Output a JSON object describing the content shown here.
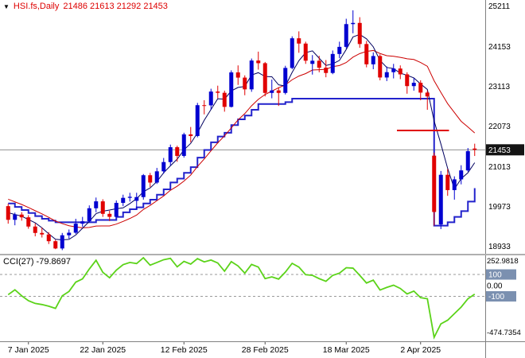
{
  "header": {
    "marker": "▼",
    "symbol_title": "HSI.fs,Daily",
    "ohlc_text": "21486 21613 21292 21453",
    "color": "#dd0000"
  },
  "cci_label": "CCI(27) -79.8697",
  "colors": {
    "bull": "#0000d0",
    "bear": "#e00000",
    "ma_fast": "#000060",
    "ma_slow": "#cc0000",
    "step_line": "#2222cc",
    "cci_line": "#5bd319",
    "price_line": "#909090",
    "price_tag_bg": "#141414",
    "level_tag_bg": "#7b90b0",
    "separator": "#808080",
    "level_dash": "#9a9a9a"
  },
  "chart_data": {
    "type": "candlestick",
    "symbol": "HSI.fs",
    "timeframe": "Daily",
    "last_quote": {
      "open": 21486,
      "high": 21613,
      "low": 21292,
      "close": 21453
    },
    "price_axis_ticks": [
      25211,
      24153,
      23113,
      22073,
      21013,
      19973,
      18933
    ],
    "time_axis_labels": [
      {
        "text": "7 Jan 2025",
        "index": 3
      },
      {
        "text": "22 Jan 2025",
        "index": 14
      },
      {
        "text": "12 Feb 2025",
        "index": 26
      },
      {
        "text": "28 Feb 2025",
        "index": 38
      },
      {
        "text": "18 Mar 2025",
        "index": 50
      },
      {
        "text": "2 Apr 2025",
        "index": 61
      }
    ],
    "candle_fields": [
      "date",
      "open",
      "high",
      "low",
      "close"
    ],
    "candles": [
      [
        "2025-01-02",
        19980,
        20041,
        19522,
        19623
      ],
      [
        "2025-01-03",
        19623,
        19811,
        19480,
        19760
      ],
      [
        "2025-01-06",
        19760,
        19823,
        19600,
        19688
      ],
      [
        "2025-01-07",
        19688,
        19745,
        19390,
        19447
      ],
      [
        "2025-01-08",
        19447,
        19530,
        19191,
        19280
      ],
      [
        "2025-01-09",
        19280,
        19420,
        19160,
        19240
      ],
      [
        "2025-01-10",
        19240,
        19300,
        18990,
        19064
      ],
      [
        "2025-01-13",
        19064,
        19100,
        18856,
        18874
      ],
      [
        "2025-01-14",
        18874,
        19280,
        18830,
        19219
      ],
      [
        "2025-01-15",
        19219,
        19370,
        19130,
        19286
      ],
      [
        "2025-01-16",
        19286,
        19650,
        19250,
        19522
      ],
      [
        "2025-01-17",
        19522,
        19700,
        19440,
        19584
      ],
      [
        "2025-01-20",
        19584,
        20000,
        19550,
        19925
      ],
      [
        "2025-01-21",
        19925,
        20205,
        19820,
        20106
      ],
      [
        "2025-01-22",
        20106,
        20160,
        19700,
        19779
      ],
      [
        "2025-01-23",
        19779,
        19860,
        19590,
        19701
      ],
      [
        "2025-01-24",
        19701,
        20130,
        19690,
        20066
      ],
      [
        "2025-01-27",
        20066,
        20280,
        19980,
        20197
      ],
      [
        "2025-01-28",
        20197,
        20330,
        20100,
        20225
      ],
      [
        "2025-02-03",
        20120,
        20330,
        19900,
        20217
      ],
      [
        "2025-02-04",
        20217,
        20820,
        20150,
        20789
      ],
      [
        "2025-02-05",
        20789,
        20850,
        20480,
        20597
      ],
      [
        "2025-02-06",
        20597,
        20980,
        20560,
        20891
      ],
      [
        "2025-02-07",
        20891,
        21240,
        20830,
        21133
      ],
      [
        "2025-02-10",
        21133,
        21590,
        21050,
        21521
      ],
      [
        "2025-02-11",
        21521,
        21560,
        21140,
        21294
      ],
      [
        "2025-02-12",
        21294,
        21900,
        21250,
        21857
      ],
      [
        "2025-02-13",
        21857,
        22050,
        21650,
        21814
      ],
      [
        "2025-02-14",
        21814,
        22680,
        21780,
        22620
      ],
      [
        "2025-02-17",
        22620,
        22750,
        22380,
        22616
      ],
      [
        "2025-02-18",
        22616,
        23050,
        22500,
        22976
      ],
      [
        "2025-02-19",
        22976,
        23130,
        22800,
        22944
      ],
      [
        "2025-02-20",
        22944,
        23000,
        22450,
        22576
      ],
      [
        "2025-02-21",
        22576,
        23530,
        22560,
        23477
      ],
      [
        "2025-02-24",
        23477,
        23660,
        23150,
        23341
      ],
      [
        "2025-02-25",
        23341,
        23400,
        22880,
        23034
      ],
      [
        "2025-02-26",
        23034,
        23840,
        22970,
        23787
      ],
      [
        "2025-02-27",
        23787,
        24020,
        23550,
        23718
      ],
      [
        "2025-02-28",
        23718,
        23750,
        22850,
        22941
      ],
      [
        "2025-03-03",
        22941,
        23290,
        22800,
        23006
      ],
      [
        "2025-03-04",
        23006,
        23090,
        22600,
        22941
      ],
      [
        "2025-03-05",
        22941,
        23650,
        22900,
        23594
      ],
      [
        "2025-03-06",
        23594,
        24420,
        23560,
        24369
      ],
      [
        "2025-03-07",
        24369,
        24550,
        23990,
        24231
      ],
      [
        "2025-03-10",
        24231,
        24280,
        23700,
        23783
      ],
      [
        "2025-03-11",
        23700,
        23930,
        23420,
        23782
      ],
      [
        "2025-03-12",
        23782,
        23910,
        23480,
        23600
      ],
      [
        "2025-03-13",
        23600,
        23800,
        23350,
        23462
      ],
      [
        "2025-03-14",
        23462,
        24050,
        23430,
        23959
      ],
      [
        "2025-03-17",
        23959,
        24280,
        23850,
        24145
      ],
      [
        "2025-03-18",
        24145,
        24880,
        24100,
        24740
      ],
      [
        "2025-03-19",
        24740,
        25100,
        24500,
        24771
      ],
      [
        "2025-03-20",
        24771,
        24920,
        24120,
        24219
      ],
      [
        "2025-03-21",
        24219,
        24300,
        23610,
        23689
      ],
      [
        "2025-03-24",
        23689,
        24000,
        23560,
        23905
      ],
      [
        "2025-03-25",
        23905,
        23950,
        23270,
        23344
      ],
      [
        "2025-03-26",
        23344,
        23630,
        23250,
        23483
      ],
      [
        "2025-03-27",
        23483,
        23700,
        23320,
        23578
      ],
      [
        "2025-03-28",
        23578,
        23660,
        23300,
        23426
      ],
      [
        "2025-03-31",
        23426,
        23480,
        22920,
        23119
      ],
      [
        "2025-04-01",
        23119,
        23330,
        23000,
        23206
      ],
      [
        "2025-04-02",
        23206,
        23270,
        22750,
        22949
      ],
      [
        "2025-04-03",
        22949,
        23000,
        22500,
        22849
      ],
      [
        "2025-04-07",
        21300,
        21380,
        19470,
        19828
      ],
      [
        "2025-04-08",
        19500,
        20900,
        19380,
        20800
      ],
      [
        "2025-04-09",
        20800,
        20950,
        20250,
        20400
      ],
      [
        "2025-04-10",
        20400,
        20760,
        20150,
        20681
      ],
      [
        "2025-04-11",
        20681,
        21050,
        20550,
        20915
      ],
      [
        "2025-04-14",
        20915,
        21500,
        20880,
        21417
      ],
      [
        "2025-04-15",
        21486,
        21613,
        21292,
        21453
      ]
    ],
    "overlays": {
      "ma_fast": {
        "period": 4
      },
      "ma_slow": {
        "period": 13
      },
      "ma_seed_closes": [
        20720,
        20650,
        20560,
        20470,
        20390,
        20310,
        20230,
        20150,
        20080,
        20010,
        19940,
        19870,
        19800
      ],
      "step_line_values": [
        20050,
        19960,
        19880,
        19800,
        19720,
        19650,
        19600,
        19560,
        19560,
        19560,
        19560,
        19560,
        19560,
        19620,
        19620,
        19620,
        19700,
        19820,
        19900,
        19950,
        20050,
        20150,
        20280,
        20420,
        20600,
        20700,
        20850,
        21000,
        21250,
        21450,
        21650,
        21800,
        21900,
        22100,
        22250,
        22350,
        22500,
        22650,
        22650,
        22650,
        22650,
        22700,
        22790,
        22790,
        22790,
        22790,
        22790,
        22790,
        22790,
        22790,
        22790,
        22790,
        22790,
        22790,
        22790,
        22790,
        22790,
        22790,
        22790,
        22790,
        22790,
        22790,
        22790,
        19470,
        19470,
        19560,
        19700,
        19850,
        20100,
        20450
      ]
    },
    "annotations": {
      "horizontal_segment": {
        "price": 21960,
        "from_index": 57.5,
        "to_index": 65.2,
        "color": "#e00000"
      },
      "current_price_line": {
        "price": 21453,
        "color": "#909090"
      }
    },
    "indicator": {
      "name": "CCI",
      "period": 27,
      "current_value": -79.8697,
      "scale_max": 252.9818,
      "scale_min": -474.7354,
      "zero_label": "0.00",
      "levels": [
        100,
        -100
      ],
      "values": [
        -85,
        -40,
        -95,
        -140,
        -165,
        -175,
        -190,
        -210,
        -95,
        -55,
        30,
        60,
        150,
        230,
        120,
        70,
        140,
        190,
        210,
        200,
        252.9818,
        185,
        210,
        235,
        248,
        170,
        220,
        195,
        245,
        215,
        232,
        205,
        130,
        218,
        178,
        112,
        192,
        168,
        62,
        78,
        58,
        122,
        202,
        168,
        98,
        92,
        62,
        38,
        92,
        112,
        162,
        158,
        92,
        22,
        48,
        -42,
        -18,
        2,
        -28,
        -78,
        -52,
        -112,
        -122,
        -474.7354,
        -352,
        -318,
        -258,
        -198,
        -122,
        -79.8697
      ]
    }
  }
}
